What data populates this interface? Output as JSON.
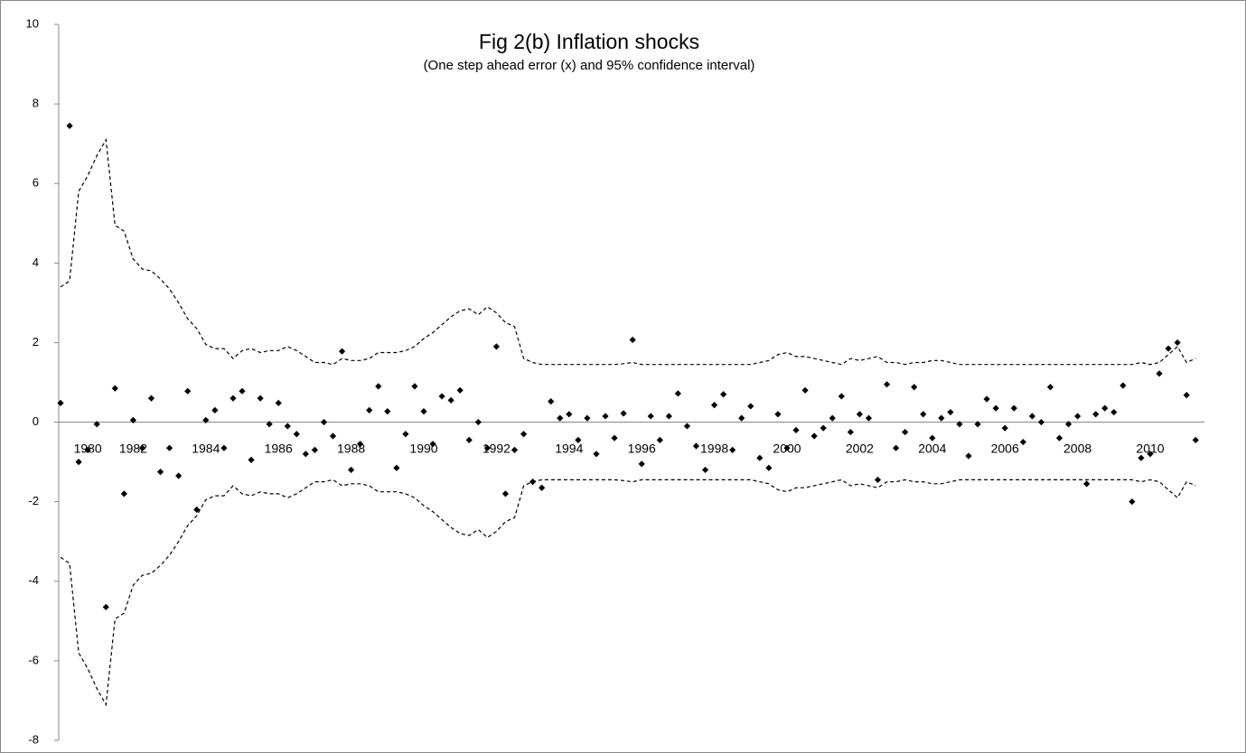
{
  "chart_data": {
    "type": "scatter-band",
    "title": "Fig 2(b) Inflation shocks",
    "subtitle": "(One step ahead error (x) and 95% confidence interval)",
    "categories": [
      null,
      null,
      null,
      "1980",
      null,
      null,
      null,
      null,
      "1982",
      null,
      null,
      null,
      null,
      null,
      null,
      null,
      "1984",
      null,
      null,
      null,
      null,
      null,
      null,
      null,
      "1986",
      null,
      null,
      null,
      null,
      null,
      null,
      null,
      "1988",
      null,
      null,
      null,
      null,
      null,
      null,
      null,
      "1990",
      null,
      null,
      null,
      null,
      null,
      null,
      null,
      "1992",
      null,
      null,
      null,
      null,
      null,
      null,
      null,
      "1994",
      null,
      null,
      null,
      null,
      null,
      null,
      null,
      "1996",
      null,
      null,
      null,
      null,
      null,
      null,
      null,
      "1998",
      null,
      null,
      null,
      null,
      null,
      null,
      null,
      "2000",
      null,
      null,
      null,
      null,
      null,
      null,
      null,
      "2002",
      null,
      null,
      null,
      null,
      null,
      null,
      null,
      "2004",
      null,
      null,
      null,
      null,
      null,
      null,
      null,
      "2006",
      null,
      null,
      null,
      null,
      null,
      null,
      null,
      "2008",
      null,
      null,
      null,
      null,
      null,
      null,
      null,
      "2010",
      null,
      null,
      null,
      null,
      null
    ],
    "series": [
      {
        "style": "points",
        "color": "#000000",
        "values": [
          0.48,
          7.45,
          -1.0,
          -0.7,
          -0.05,
          -4.65,
          0.85,
          -1.8,
          0.05,
          -0.65,
          0.6,
          -1.25,
          -0.65,
          -1.35,
          0.78,
          -2.2,
          0.05,
          0.3,
          -0.65,
          0.6,
          0.78,
          -0.95,
          0.6,
          -0.05,
          0.48,
          -0.1,
          -0.3,
          -0.8,
          -0.7,
          0.0,
          -0.35,
          1.78,
          -1.2,
          -0.55,
          0.3,
          0.9,
          0.27,
          -1.15,
          -0.3,
          0.9,
          0.27,
          -0.55,
          0.65,
          0.55,
          0.8,
          -0.45,
          0.0,
          -0.65,
          1.9,
          -1.8,
          -0.7,
          -0.3,
          -1.5,
          -1.65,
          0.52,
          0.1,
          0.2,
          -0.45,
          0.1,
          -0.8,
          0.15,
          -0.4,
          0.22,
          2.07,
          -1.05,
          0.15,
          -0.45,
          0.15,
          0.72,
          -0.1,
          -0.6,
          -1.2,
          0.43,
          0.7,
          -0.7,
          0.1,
          0.4,
          -0.9,
          -1.15,
          0.2,
          -0.65,
          -0.2,
          0.8,
          -0.35,
          -0.15,
          0.1,
          0.65,
          -0.25,
          0.2,
          0.1,
          -1.45,
          0.95,
          -0.65,
          -0.25,
          0.88,
          0.2,
          -0.4,
          0.1,
          0.25,
          -0.05,
          -0.85,
          -0.05,
          0.58,
          0.35,
          -0.15,
          0.35,
          -0.5,
          0.15,
          0.0,
          0.88,
          -0.4,
          -0.05,
          0.15,
          -1.55,
          0.2,
          0.35,
          0.25,
          0.92,
          -2.0,
          -0.9,
          -0.8,
          1.22,
          1.85,
          2.0,
          0.68,
          -0.45
        ]
      },
      {
        "style": "dashed",
        "color": "#000000",
        "values": [
          3.4,
          3.55,
          5.8,
          6.2,
          6.7,
          7.1,
          4.95,
          4.8,
          4.1,
          3.85,
          3.8,
          3.6,
          3.35,
          3.0,
          2.6,
          2.35,
          1.95,
          1.85,
          1.85,
          1.6,
          1.8,
          1.85,
          1.75,
          1.8,
          1.8,
          1.9,
          1.8,
          1.65,
          1.5,
          1.5,
          1.45,
          1.6,
          1.55,
          1.55,
          1.6,
          1.75,
          1.75,
          1.75,
          1.8,
          1.9,
          2.1,
          2.25,
          2.45,
          2.65,
          2.8,
          2.85,
          2.7,
          2.9,
          2.75,
          2.5,
          2.4,
          1.6,
          1.5,
          1.45,
          1.45,
          1.45,
          1.45,
          1.45,
          1.45,
          1.45,
          1.45,
          1.45,
          1.47,
          1.5,
          1.45,
          1.45,
          1.45,
          1.45,
          1.45,
          1.45,
          1.45,
          1.45,
          1.45,
          1.45,
          1.45,
          1.45,
          1.45,
          1.5,
          1.55,
          1.7,
          1.75,
          1.65,
          1.65,
          1.6,
          1.55,
          1.5,
          1.45,
          1.6,
          1.55,
          1.6,
          1.65,
          1.5,
          1.5,
          1.45,
          1.5,
          1.5,
          1.55,
          1.55,
          1.5,
          1.45,
          1.45,
          1.45,
          1.45,
          1.45,
          1.45,
          1.45,
          1.45,
          1.45,
          1.45,
          1.45,
          1.45,
          1.45,
          1.45,
          1.45,
          1.45,
          1.45,
          1.45,
          1.45,
          1.45,
          1.5,
          1.45,
          1.5,
          1.7,
          1.9,
          1.5,
          1.6
        ]
      },
      {
        "style": "dashed",
        "color": "#000000",
        "values": [
          -3.4,
          -3.55,
          -5.8,
          -6.2,
          -6.7,
          -7.1,
          -4.95,
          -4.8,
          -4.1,
          -3.85,
          -3.8,
          -3.6,
          -3.35,
          -3.0,
          -2.6,
          -2.35,
          -1.95,
          -1.85,
          -1.85,
          -1.6,
          -1.8,
          -1.85,
          -1.75,
          -1.8,
          -1.8,
          -1.9,
          -1.8,
          -1.65,
          -1.5,
          -1.5,
          -1.45,
          -1.6,
          -1.55,
          -1.55,
          -1.6,
          -1.75,
          -1.75,
          -1.75,
          -1.8,
          -1.9,
          -2.1,
          -2.25,
          -2.45,
          -2.65,
          -2.8,
          -2.85,
          -2.7,
          -2.9,
          -2.75,
          -2.5,
          -2.4,
          -1.6,
          -1.5,
          -1.45,
          -1.45,
          -1.45,
          -1.45,
          -1.45,
          -1.45,
          -1.45,
          -1.45,
          -1.45,
          -1.47,
          -1.5,
          -1.45,
          -1.45,
          -1.45,
          -1.45,
          -1.45,
          -1.45,
          -1.45,
          -1.45,
          -1.45,
          -1.45,
          -1.45,
          -1.45,
          -1.45,
          -1.5,
          -1.55,
          -1.7,
          -1.75,
          -1.65,
          -1.65,
          -1.6,
          -1.55,
          -1.5,
          -1.45,
          -1.6,
          -1.55,
          -1.6,
          -1.65,
          -1.5,
          -1.5,
          -1.45,
          -1.5,
          -1.5,
          -1.55,
          -1.55,
          -1.5,
          -1.45,
          -1.45,
          -1.45,
          -1.45,
          -1.45,
          -1.45,
          -1.45,
          -1.45,
          -1.45,
          -1.45,
          -1.45,
          -1.45,
          -1.45,
          -1.45,
          -1.45,
          -1.45,
          -1.45,
          -1.45,
          -1.45,
          -1.45,
          -1.5,
          -1.45,
          -1.5,
          -1.7,
          -1.9,
          -1.5,
          -1.6
        ]
      }
    ],
    "ylim": [
      -8,
      10
    ],
    "yticks": [
      -8,
      -6,
      -4,
      -2,
      0,
      2,
      4,
      6,
      8,
      10
    ]
  }
}
